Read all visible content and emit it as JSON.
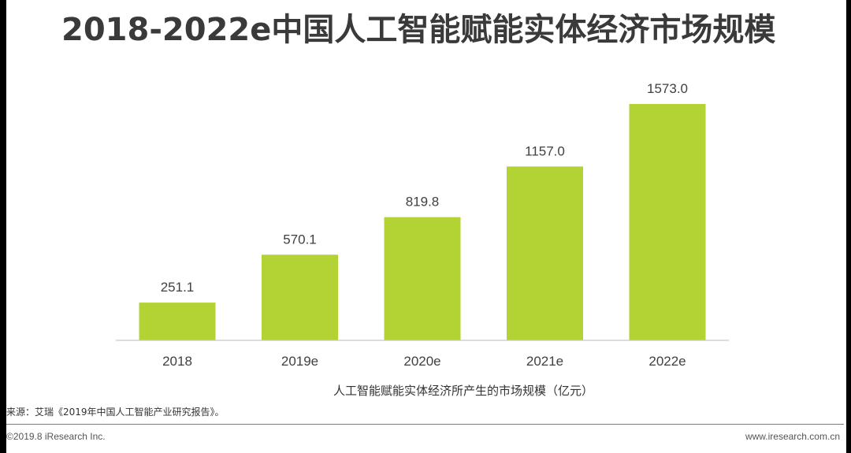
{
  "title": "2018-2022e中国人工智能赋能实体经济市场规模",
  "chart_data": {
    "type": "bar",
    "title": "2018-2022e中国人工智能赋能实体经济市场规模",
    "categories": [
      "2018",
      "2019e",
      "2020e",
      "2021e",
      "2022e"
    ],
    "series": [
      {
        "name": "人工智能赋能实体经济所产生的市场规模（亿元）",
        "values": [
          251.1,
          570.1,
          819.8,
          1157.0,
          1573.0
        ],
        "value_labels": [
          "251.1",
          "570.1",
          "819.8",
          "1157.0",
          "1573.0"
        ]
      }
    ],
    "ylim": [
      0,
      1573.0
    ],
    "grid": false,
    "legend": "bottom",
    "colors": {
      "bar": "#b3d334",
      "axis": "#c8c8c8"
    }
  },
  "source": "来源：艾瑞《2019年中国人工智能产业研究报告》。",
  "footer": {
    "copyright": "©2019.8 iResearch Inc.",
    "website": "www.iresearch.com.cn"
  }
}
